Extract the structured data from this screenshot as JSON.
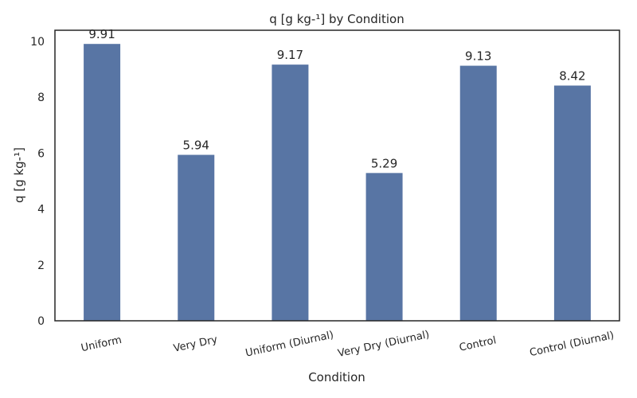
{
  "chart_data": {
    "type": "bar",
    "title": "q [g kg-¹] by Condition",
    "xlabel": "Condition",
    "ylabel": "q [g kg-¹]",
    "categories": [
      "Uniform",
      "Very Dry",
      "Uniform (Diurnal)",
      "Very Dry (Diurnal)",
      "Control",
      "Control (Diurnal)"
    ],
    "values": [
      9.91,
      5.94,
      9.17,
      5.29,
      9.13,
      8.42
    ],
    "value_labels": [
      "9.91",
      "5.94",
      "9.17",
      "5.29",
      "9.13",
      "8.42"
    ],
    "yticks": [
      "0",
      "2",
      "4",
      "6",
      "8",
      "10"
    ],
    "ylim": [
      0,
      10.4
    ],
    "grid": false,
    "bar_color": "#5875a4"
  }
}
